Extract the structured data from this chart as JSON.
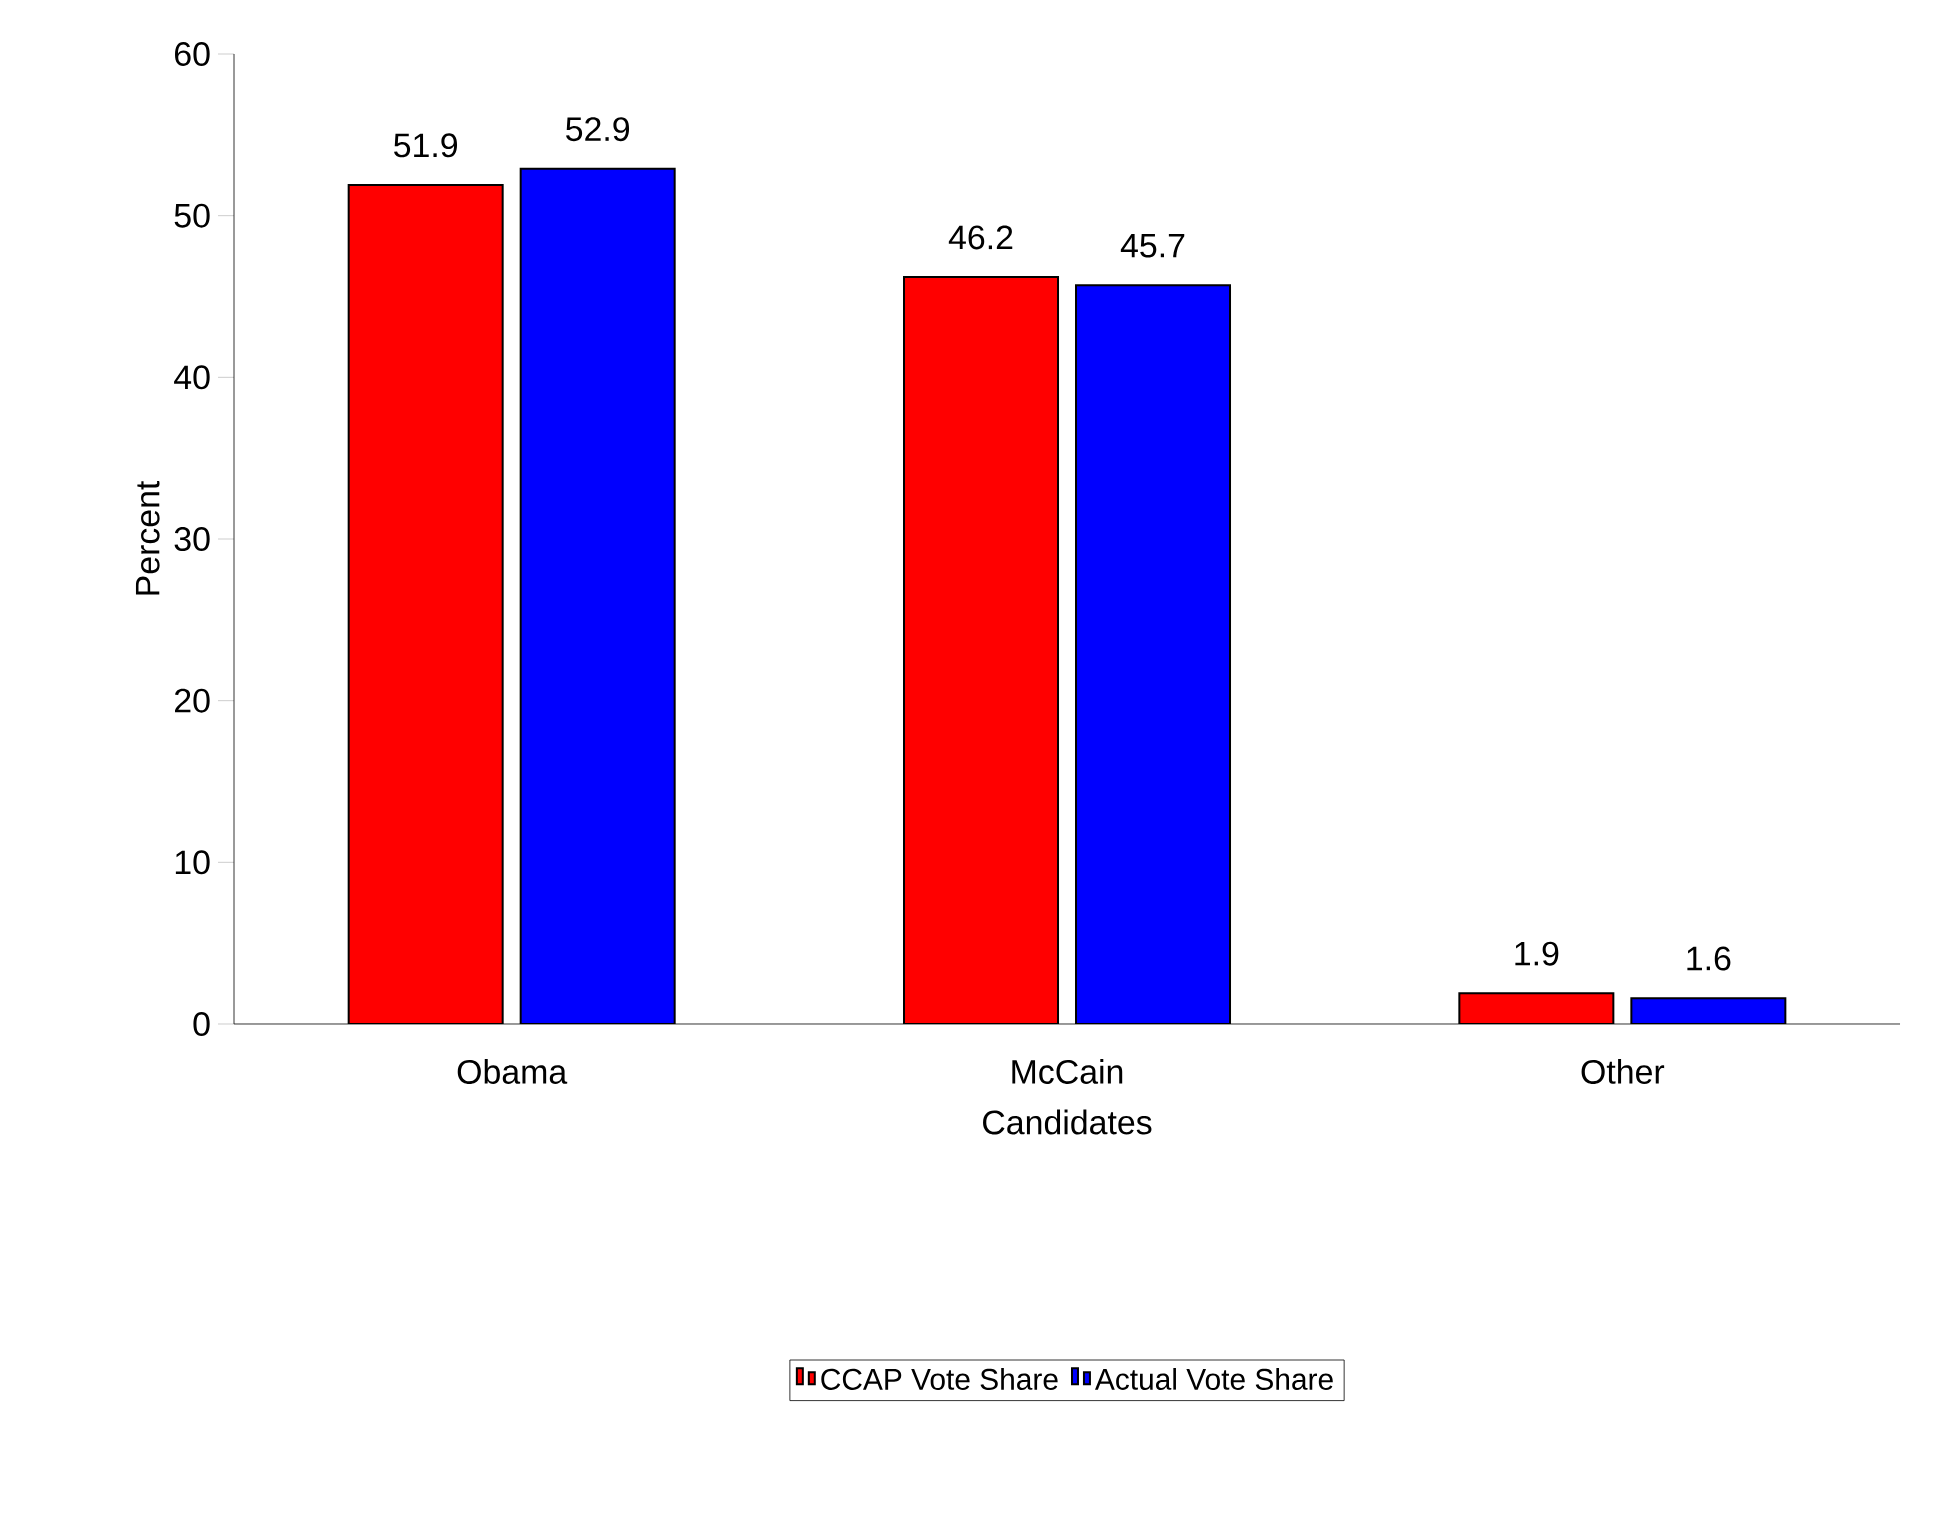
{
  "chart_data": {
    "type": "bar",
    "xlabel": "Candidates",
    "ylabel": "Percent",
    "categories": [
      "Obama",
      "McCain",
      "Other"
    ],
    "series": [
      {
        "name": "CCAP Vote Share",
        "color": "#ff0000",
        "values": [
          51.9,
          46.2,
          1.9
        ]
      },
      {
        "name": "Actual Vote Share",
        "color": "#0000ff",
        "values": [
          52.9,
          45.7,
          1.6
        ]
      }
    ],
    "ylim": [
      0,
      60
    ],
    "yticks": [
      0,
      10,
      20,
      30,
      40,
      50,
      60
    ],
    "data_labels": true,
    "grid": false,
    "legend": "bottom"
  }
}
